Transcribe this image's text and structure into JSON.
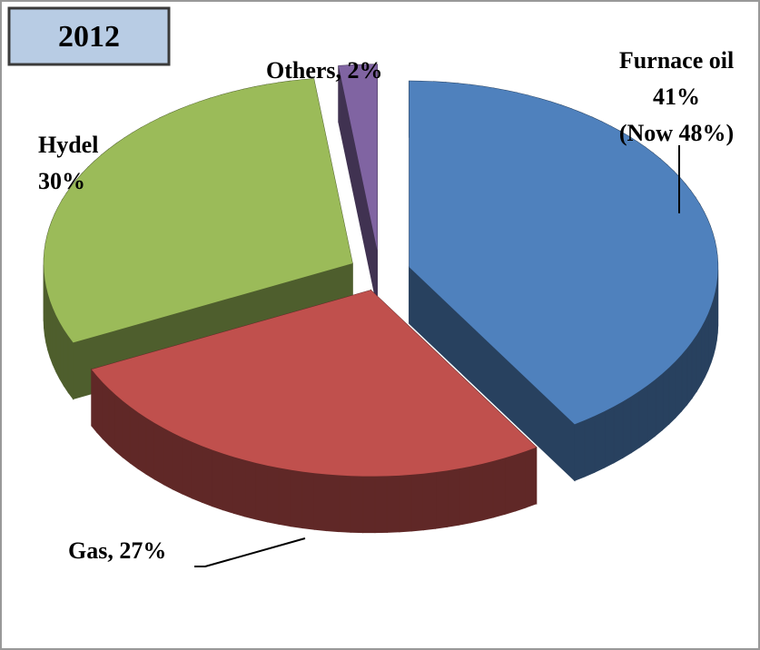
{
  "chart_data": {
    "type": "pie3d",
    "title": "2012",
    "values": [
      41,
      27,
      30,
      2
    ],
    "labels": [
      [
        "Furnace oil",
        "41%",
        "(Now 48%)"
      ],
      [
        "Gas, 27%"
      ],
      [
        "Hydel",
        "30%"
      ],
      [
        "Others, 2%"
      ]
    ],
    "colors": [
      "#4f81bd",
      "#c0504d",
      "#9bbb59",
      "#8064a2"
    ]
  }
}
